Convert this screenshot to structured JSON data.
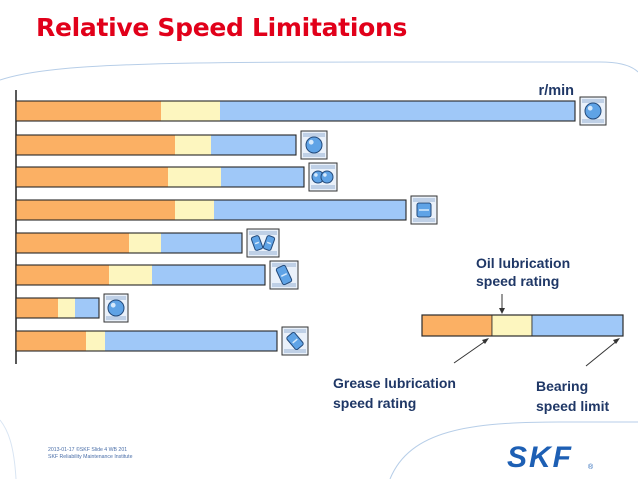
{
  "slide": {
    "title": "Relative Speed Limitations",
    "unit_label": "r/min",
    "footer_line1": "2013-01-17  ©SKF  Slide 4  WB 201",
    "footer_line2": "SKF Reliability Maintenance Institute",
    "logo_text": "SKF",
    "logo_mark": "®"
  },
  "colors": {
    "grease": "#fbb064",
    "oil": "#fdf6bf",
    "limit": "#9fc8f8",
    "brand_red": "#e1001a",
    "logo_blue": "#1d5fb4"
  },
  "bearing_icons": [
    "deep-groove-ball-bearing-icon",
    "self-aligning-ball-bearing-icon",
    "double-row-ball-bearing-icon",
    "cylindrical-roller-bearing-icon",
    "spherical-roller-bearing-icon",
    "tapered-roller-bearing-icon",
    "thrust-ball-bearing-icon",
    "angular-contact-bearing-icon"
  ],
  "chart_data": {
    "type": "bar",
    "orientation": "horizontal",
    "stacked": true,
    "xlabel": "r/min",
    "series": [
      {
        "name": "Grease lubrication speed rating",
        "values": [
          145,
          159,
          152,
          159,
          113,
          93,
          42,
          70
        ]
      },
      {
        "name": "Oil lubrication speed rating",
        "values": [
          204,
          195,
          205,
          198,
          145,
          136,
          59,
          89
        ]
      },
      {
        "name": "Bearing speed limit",
        "values": [
          559,
          280,
          288,
          390,
          226,
          249,
          83,
          261
        ]
      }
    ],
    "grid": false
  },
  "legend": {
    "oil_line1": "Oil lubrication",
    "oil_line2": "speed rating",
    "grease_line1": "Grease lubrication",
    "grease_line2": "speed rating",
    "limit_line1": "Bearing",
    "limit_line2": "speed limit"
  }
}
